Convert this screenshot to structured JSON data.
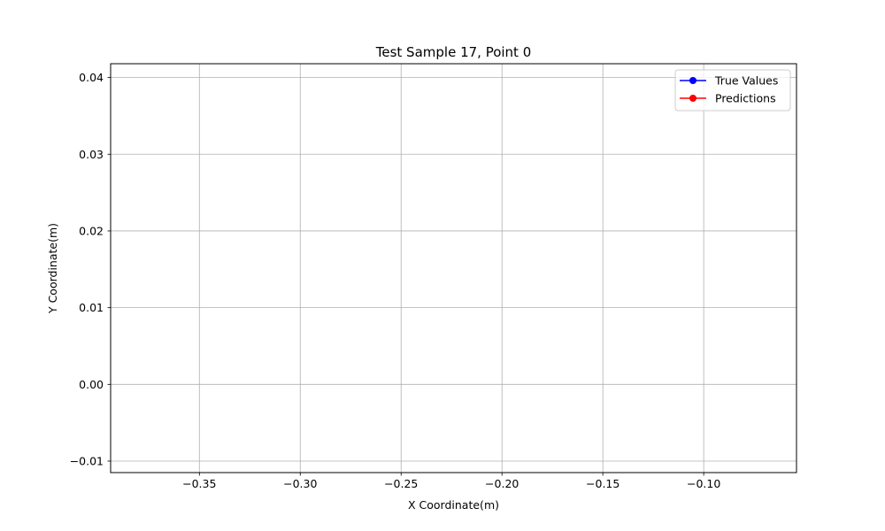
{
  "chart_data": {
    "type": "line",
    "title": "Test Sample 17, Point 0",
    "xlabel": "X Coordinate(m)",
    "ylabel": "Y Coordinate(m)",
    "xlim": [
      -0.394,
      -0.054
    ],
    "ylim": [
      -0.0115,
      0.0418
    ],
    "xticks": [
      -0.35,
      -0.3,
      -0.25,
      -0.2,
      -0.15,
      -0.1
    ],
    "xtick_labels": [
      "−0.35",
      "−0.30",
      "−0.25",
      "−0.20",
      "−0.15",
      "−0.10"
    ],
    "yticks": [
      -0.01,
      0.0,
      0.01,
      0.02,
      0.03,
      0.04
    ],
    "ytick_labels": [
      "−0.01",
      "0.00",
      "0.01",
      "0.02",
      "0.03",
      "0.04"
    ],
    "grid": true,
    "legend_position": "top-right",
    "series": [
      {
        "name": "True Values",
        "color": "#0000ff",
        "marker": "circle",
        "x": [],
        "y": []
      },
      {
        "name": "Predictions",
        "color": "#ff0000",
        "marker": "circle",
        "x": [],
        "y": []
      }
    ]
  }
}
